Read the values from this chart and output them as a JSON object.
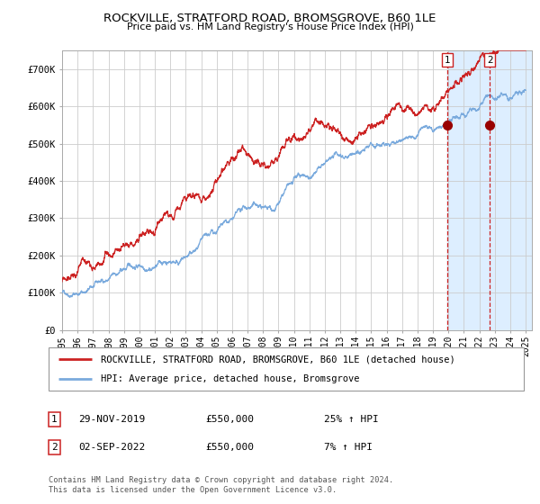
{
  "title": "ROCKVILLE, STRATFORD ROAD, BROMSGROVE, B60 1LE",
  "subtitle": "Price paid vs. HM Land Registry's House Price Index (HPI)",
  "legend_line1": "ROCKVILLE, STRATFORD ROAD, BROMSGROVE, B60 1LE (detached house)",
  "legend_line2": "HPI: Average price, detached house, Bromsgrove",
  "sale1_date": "29-NOV-2019",
  "sale1_price": "£550,000",
  "sale1_hpi": "25% ↑ HPI",
  "sale2_date": "02-SEP-2022",
  "sale2_price": "£550,000",
  "sale2_hpi": "7% ↑ HPI",
  "footer": "Contains HM Land Registry data © Crown copyright and database right 2024.\nThis data is licensed under the Open Government Licence v3.0.",
  "hpi_color": "#7aaadd",
  "price_color": "#cc2222",
  "marker_color": "#990000",
  "background_shade": "#ddeeff",
  "grid_color": "#cccccc",
  "dashed_line_color": "#cc2222",
  "ylim": [
    0,
    750000
  ],
  "yticks": [
    0,
    100000,
    200000,
    300000,
    400000,
    500000,
    600000,
    700000
  ],
  "ytick_labels": [
    "£0",
    "£100K",
    "£200K",
    "£300K",
    "£400K",
    "£500K",
    "£600K",
    "£700K"
  ],
  "sale1_x": 2019.92,
  "sale2_x": 2022.67,
  "sale1_y": 550000,
  "sale2_y": 550000,
  "shade_start_x": 2019.92,
  "shade_end_x": 2025.4,
  "xlim_start": 1995.0,
  "xlim_end": 2025.4,
  "xtick_years": [
    1995,
    1996,
    1997,
    1998,
    1999,
    2000,
    2001,
    2002,
    2003,
    2004,
    2005,
    2006,
    2007,
    2008,
    2009,
    2010,
    2011,
    2012,
    2013,
    2014,
    2015,
    2016,
    2017,
    2018,
    2019,
    2020,
    2021,
    2022,
    2023,
    2024,
    2025
  ]
}
